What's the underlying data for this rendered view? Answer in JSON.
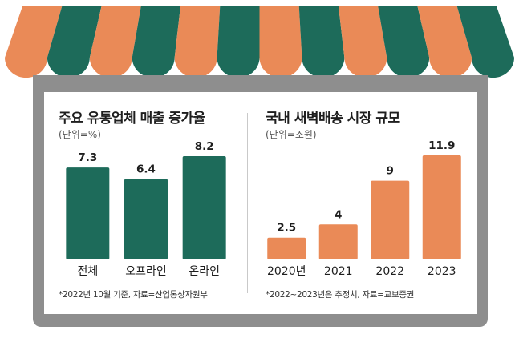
{
  "colors": {
    "green": "#1d6b5a",
    "orange": "#ea8a57",
    "frame_gray": "#8e8e8e",
    "text_dark": "#1e1e1e"
  },
  "awning": {
    "stripe_colors": [
      "orange",
      "green"
    ]
  },
  "chart_data": [
    {
      "type": "bar",
      "title": "주요 유통업체 매출 증가율",
      "unit_label": "(단위=%)",
      "categories": [
        "전체",
        "오프라인",
        "온라인"
      ],
      "values": [
        7.3,
        6.4,
        8.2
      ],
      "value_labels": [
        "7.3",
        "6.4",
        "8.2"
      ],
      "ylim": [
        0,
        8.2
      ],
      "bar_color": "#1d6b5a",
      "note": "*2022년 10월 기준, 자료=산업통상자원부"
    },
    {
      "type": "bar",
      "title": "국내 새벽배송 시장 규모",
      "unit_label": "(단위=조원)",
      "categories": [
        "2020년",
        "2021",
        "2022",
        "2023"
      ],
      "values": [
        2.5,
        4,
        9,
        11.9
      ],
      "value_labels": [
        "2.5",
        "4",
        "9",
        "11.9"
      ],
      "ylim": [
        0,
        11.9
      ],
      "bar_color": "#ea8a57",
      "note": "*2022~2023년은 추정치, 자료=교보증권"
    }
  ]
}
